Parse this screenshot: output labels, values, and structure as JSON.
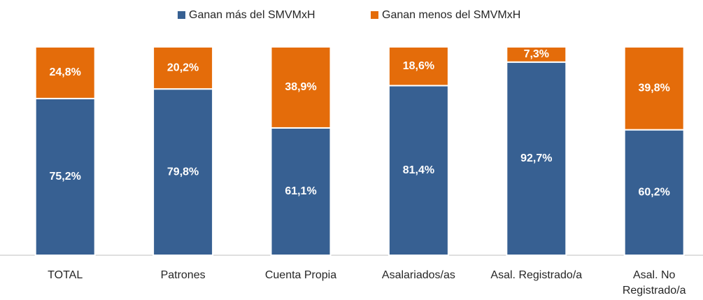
{
  "chart_data": {
    "type": "stacked_bar",
    "categories": [
      "TOTAL",
      "Patrones",
      "Cuenta Propia",
      "Asalariados/as",
      "Asal. Registrado/a",
      "Asal. No Registrado/a"
    ],
    "series": [
      {
        "name": "Ganan más del SMVMxH",
        "color": "#376092",
        "values": [
          75.2,
          79.8,
          61.1,
          81.4,
          92.7,
          60.2
        ],
        "value_labels": [
          "75,2%",
          "79,8%",
          "61,1%",
          "81,4%",
          "92,7%",
          "60,2%"
        ]
      },
      {
        "name": "Ganan menos del SMVMxH",
        "color": "#e46c0a",
        "values": [
          24.8,
          20.2,
          38.9,
          18.6,
          7.3,
          39.8
        ],
        "value_labels": [
          "24,8%",
          "20,2%",
          "38,9%",
          "18,6%",
          "7,3%",
          "39,8%"
        ]
      }
    ],
    "ylim": [
      0,
      100
    ],
    "legend": "top"
  }
}
